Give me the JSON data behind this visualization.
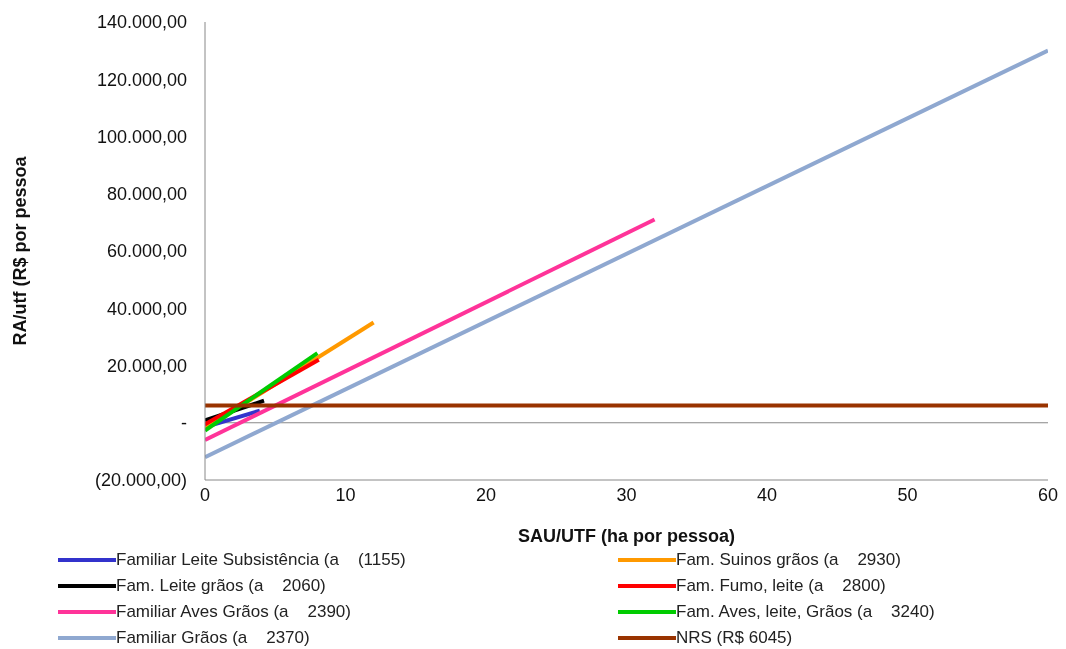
{
  "chart_data": {
    "type": "line",
    "xlabel": "SAU/UTF (ha por pessoa)",
    "ylabel": "RA/utf (R$ por pessoa",
    "xlim": [
      0,
      60
    ],
    "xticks": [
      0,
      10,
      20,
      30,
      40,
      50,
      60
    ],
    "ylim": [
      -20000,
      140000
    ],
    "yticks": [
      {
        "value": -20000,
        "label": "(20.000,00)"
      },
      {
        "value": 0,
        "label": "-"
      },
      {
        "value": 20000,
        "label": "20.000,00"
      },
      {
        "value": 40000,
        "label": "40.000,00"
      },
      {
        "value": 60000,
        "label": "60.000,00"
      },
      {
        "value": 80000,
        "label": "80.000,00"
      },
      {
        "value": 100000,
        "label": "100.000,00"
      },
      {
        "value": 120000,
        "label": "120.000,00"
      },
      {
        "value": 140000,
        "label": "140.000,00"
      }
    ],
    "grid": false,
    "ref_lines": [
      {
        "axis": "y",
        "value": 0,
        "color": "#888888"
      }
    ],
    "legend": "bottom",
    "marker": "none",
    "line_style": "solid",
    "series": [
      {
        "name": "Familiar Leite Subsistência (a    (1155)",
        "color": "#3333cc",
        "x": [
          0,
          3.9
        ],
        "values": [
          -1500,
          4200
        ]
      },
      {
        "name": "Fam. Suinos grãos (a    2930)",
        "color": "#ff9900",
        "x": [
          0,
          12
        ],
        "values": [
          -2000,
          35000
        ]
      },
      {
        "name": "Fam. Leite grãos (a    2060)",
        "color": "#000000",
        "x": [
          0,
          4.2
        ],
        "values": [
          800,
          7700
        ]
      },
      {
        "name": "Fam. Fumo, leite (a    2800)",
        "color": "#ff0000",
        "x": [
          0,
          8.1
        ],
        "values": [
          -500,
          22000
        ]
      },
      {
        "name": "Familiar Aves Grãos (a    2390)",
        "color": "#ff3399",
        "x": [
          0,
          32
        ],
        "values": [
          -6000,
          71000
        ]
      },
      {
        "name": "Fam. Aves, leite, Grãos (a    3240)",
        "color": "#00cc00",
        "x": [
          0,
          8
        ],
        "values": [
          -2700,
          24300
        ]
      },
      {
        "name": "Familiar Grãos (a    2370)",
        "color": "#8fa8d0",
        "x": [
          0,
          60
        ],
        "values": [
          -12000,
          130000
        ]
      },
      {
        "name": "NRS (R$ 6045)",
        "color": "#993300",
        "x": [
          0,
          60
        ],
        "values": [
          6045,
          6045
        ]
      }
    ]
  }
}
